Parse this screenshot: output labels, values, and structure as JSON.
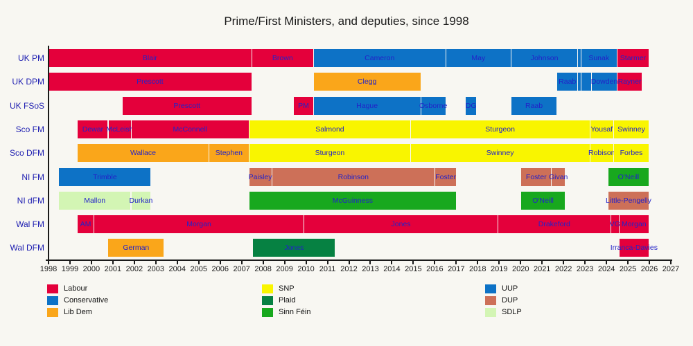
{
  "page": {
    "background": "#f8f7f2"
  },
  "chart_data": {
    "type": "timeline",
    "title": "Prime/First Ministers, and deputies, since 1998",
    "x_axis": {
      "min": 1998,
      "max": 2027,
      "ticks": [
        1998,
        1999,
        2000,
        2001,
        2002,
        2003,
        2004,
        2005,
        2006,
        2007,
        2008,
        2009,
        2010,
        2011,
        2012,
        2013,
        2014,
        2015,
        2016,
        2017,
        2018,
        2019,
        2020,
        2021,
        2022,
        2023,
        2024,
        2025,
        2026,
        2027
      ]
    },
    "party_colors": {
      "labour": "#e4003b",
      "conservative": "#0d72c6",
      "libdem": "#faa61a",
      "snp": "#f9f500",
      "plaid": "#068142",
      "sinnfein": "#18a81e",
      "uup": "#0d72c6",
      "dup": "#cd7058",
      "sdlp": "#d3f5b4"
    },
    "rows": [
      {
        "label": "UK PM",
        "bars": [
          {
            "name": "Blair",
            "party": "labour",
            "start": 1998.0,
            "end": 2007.49
          },
          {
            "name": "Brown",
            "party": "labour",
            "start": 2007.49,
            "end": 2010.36
          },
          {
            "name": "Cameron",
            "party": "conservative",
            "start": 2010.36,
            "end": 2016.53
          },
          {
            "name": "May",
            "party": "conservative",
            "start": 2016.53,
            "end": 2019.57
          },
          {
            "name": "Johnson",
            "party": "conservative",
            "start": 2019.57,
            "end": 2022.68
          },
          {
            "name": "",
            "party": "conservative",
            "start": 2022.68,
            "end": 2022.82
          },
          {
            "name": "Sunak",
            "party": "conservative",
            "start": 2022.82,
            "end": 2024.51
          },
          {
            "name": "Starmer",
            "party": "labour",
            "start": 2024.51,
            "end": 2026.0
          }
        ]
      },
      {
        "label": "UK DPM",
        "bars": [
          {
            "name": "Prescott",
            "party": "labour",
            "start": 1998.0,
            "end": 2007.49
          },
          {
            "name": "Clegg",
            "party": "libdem",
            "start": 2010.36,
            "end": 2015.36
          },
          {
            "name": "Raab",
            "party": "conservative",
            "start": 2021.71,
            "end": 2022.68
          },
          {
            "name": "",
            "party": "conservative",
            "start": 2022.68,
            "end": 2022.82
          },
          {
            "name": "",
            "party": "conservative",
            "start": 2022.82,
            "end": 2023.32
          },
          {
            "name": "Dowden",
            "party": "conservative",
            "start": 2023.32,
            "end": 2024.51
          },
          {
            "name": "Rayner",
            "party": "labour",
            "start": 2024.51,
            "end": 2025.68
          }
        ]
      },
      {
        "label": "UK FSoS",
        "bars": [
          {
            "name": "Prescott",
            "party": "labour",
            "start": 2001.44,
            "end": 2007.49
          },
          {
            "name": "PM",
            "party": "labour",
            "start": 2009.44,
            "end": 2010.36
          },
          {
            "name": "Hague",
            "party": "conservative",
            "start": 2010.36,
            "end": 2015.36
          },
          {
            "name": "Osborne",
            "party": "conservative",
            "start": 2015.36,
            "end": 2016.53
          },
          {
            "name": "DG",
            "party": "conservative",
            "start": 2017.44,
            "end": 2017.97
          },
          {
            "name": "Raab",
            "party": "conservative",
            "start": 2019.57,
            "end": 2021.71
          }
        ]
      },
      {
        "label": "Sco FM",
        "bars": [
          {
            "name": "Dewar",
            "party": "labour",
            "start": 1999.37,
            "end": 2000.79
          },
          {
            "name": "McLeish",
            "party": "labour",
            "start": 2000.82,
            "end": 2001.86
          },
          {
            "name": "McConnell",
            "party": "labour",
            "start": 2001.86,
            "end": 2007.37
          },
          {
            "name": "Salmond",
            "party": "snp",
            "start": 2007.37,
            "end": 2014.88
          },
          {
            "name": "Sturgeon",
            "party": "snp",
            "start": 2014.88,
            "end": 2023.24
          },
          {
            "name": "Yousaf",
            "party": "snp",
            "start": 2023.24,
            "end": 2024.35
          },
          {
            "name": "Swinney",
            "party": "snp",
            "start": 2024.35,
            "end": 2026.0
          }
        ]
      },
      {
        "label": "Sco DFM",
        "bars": [
          {
            "name": "Wallace",
            "party": "libdem",
            "start": 1999.37,
            "end": 2005.48
          },
          {
            "name": "Stephen",
            "party": "libdem",
            "start": 2005.48,
            "end": 2007.37
          },
          {
            "name": "Sturgeon",
            "party": "snp",
            "start": 2007.37,
            "end": 2014.88
          },
          {
            "name": "Swinney",
            "party": "snp",
            "start": 2014.88,
            "end": 2023.24
          },
          {
            "name": "Robison",
            "party": "snp",
            "start": 2023.24,
            "end": 2024.35
          },
          {
            "name": "Forbes",
            "party": "snp",
            "start": 2024.35,
            "end": 2026.0
          }
        ]
      },
      {
        "label": "NI FM",
        "bars": [
          {
            "name": "Trimble",
            "party": "uup",
            "start": 1998.5,
            "end": 2002.79
          },
          {
            "name": "Paisley",
            "party": "dup",
            "start": 2007.35,
            "end": 2008.42
          },
          {
            "name": "Robinson",
            "party": "dup",
            "start": 2008.42,
            "end": 2016.02
          },
          {
            "name": "Foster",
            "party": "dup",
            "start": 2016.02,
            "end": 2017.03
          },
          {
            "name": "Foster",
            "party": "dup",
            "start": 2020.03,
            "end": 2021.46
          },
          {
            "name": "Givan",
            "party": "dup",
            "start": 2021.46,
            "end": 2022.09
          },
          {
            "name": "O'Neill",
            "party": "sinnfein",
            "start": 2024.09,
            "end": 2026.0
          }
        ]
      },
      {
        "label": "NI dFM",
        "bars": [
          {
            "name": "Mallon",
            "party": "sdlp",
            "start": 1998.5,
            "end": 2001.84
          },
          {
            "name": "Durkan",
            "party": "sdlp",
            "start": 2001.86,
            "end": 2002.79
          },
          {
            "name": "McGuinness",
            "party": "sinnfein",
            "start": 2007.35,
            "end": 2017.03
          },
          {
            "name": "O'Neill",
            "party": "sinnfein",
            "start": 2020.03,
            "end": 2022.09
          },
          {
            "name": "Little-Pengelly",
            "party": "dup",
            "start": 2024.09,
            "end": 2026.0
          }
        ]
      },
      {
        "label": "Wal FM",
        "bars": [
          {
            "name": "AM",
            "party": "labour",
            "start": 1999.37,
            "end": 2000.12
          },
          {
            "name": "Morgan",
            "party": "labour",
            "start": 2000.12,
            "end": 2009.93
          },
          {
            "name": "Jones",
            "party": "labour",
            "start": 2009.93,
            "end": 2018.95
          },
          {
            "name": "Drakeford",
            "party": "labour",
            "start": 2018.95,
            "end": 2024.22
          },
          {
            "name": "VG",
            "party": "labour",
            "start": 2024.22,
            "end": 2024.6
          },
          {
            "name": "Morgan",
            "party": "labour",
            "start": 2024.6,
            "end": 2026.0
          }
        ]
      },
      {
        "label": "Wal DFM",
        "bars": [
          {
            "name": "German",
            "party": "libdem",
            "start": 2000.79,
            "end": 2003.4
          },
          {
            "name": "Jones",
            "party": "plaid",
            "start": 2007.54,
            "end": 2011.38
          },
          {
            "name": "Irranca-Davies",
            "party": "labour",
            "start": 2024.6,
            "end": 2026.0
          }
        ]
      }
    ]
  },
  "legend": {
    "columns": [
      [
        {
          "label": "Labour",
          "party": "labour"
        },
        {
          "label": "Conservative",
          "party": "conservative"
        },
        {
          "label": "Lib Dem",
          "party": "libdem"
        }
      ],
      [
        {
          "label": "SNP",
          "party": "snp"
        },
        {
          "label": "Plaid",
          "party": "plaid"
        },
        {
          "label": "Sinn Féin",
          "party": "sinnfein"
        }
      ],
      [
        {
          "label": "UUP",
          "party": "uup"
        },
        {
          "label": "DUP",
          "party": "dup"
        },
        {
          "label": "SDLP",
          "party": "sdlp"
        }
      ]
    ]
  }
}
